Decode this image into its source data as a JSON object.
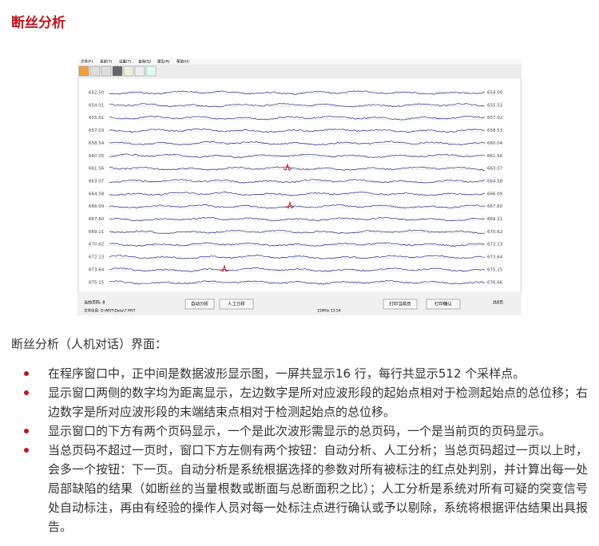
{
  "header": {
    "title": "断丝分析"
  },
  "screenshot": {
    "menu": [
      "文件(F)",
      "系统(Y)",
      "设置(T)",
      "查询(Q)",
      "报告(R)",
      "帮助(H)"
    ],
    "left_labels": [
      "652.50",
      "654.01",
      "655.51",
      "657.03",
      "658.54",
      "660.05",
      "661.56",
      "663.07",
      "664.58",
      "666.09",
      "667.60",
      "669.11",
      "670.62",
      "672.13",
      "673.64",
      "675.15"
    ],
    "right_labels": [
      "654.00",
      "655.51",
      "657.02",
      "658.53",
      "660.04",
      "661.56",
      "663.07",
      "664.58",
      "666.09",
      "667.60",
      "669.11",
      "670.62",
      "672.13",
      "673.64",
      "675.15",
      "676.66"
    ],
    "current_page": "当前页码: 8",
    "file_info": "文件信息: D:\\MST\\Data\\7.MST",
    "status": "15MHz  13:54",
    "total_pages": "共8页",
    "buttons": [
      "自动分析",
      "人工分析",
      "打印当前页",
      "打印确认"
    ]
  },
  "caption": "断丝分析（人机对话）界面：",
  "bullets": [
    "在程序窗口中，正中间是数据波形显示图，一屏共显示16 行，每行共显示512 个采样点。",
    "显示窗口两侧的数字均为距离显示，左边数字是所对应波形段的起始点相对于检测起始点的总位移；右边数字是所对应波形段的末端结束点相对于检测起始点的总位移。",
    "显示窗口的下方有两个页码显示，一个是此次波形需显示的总页码，一个是当前页的页码显示。",
    "当总页码不超过一页时，窗口下方左侧有两个按钮：自动分析、人工分析；当总页码超过一页以上时，会多一个按钮：下一页。自动分析是系统根据选择的参数对所有被标注的红点处判别，并计算出每一处局部缺陷的结果（如断丝的当量根数或断面与总断面积之比）；人工分析是系统对所有可疑的突变信号处自动标注，再由有经验的操作人员对每一处标注点进行确认或予以剔除，系统将根据评估结果出具报告。"
  ]
}
